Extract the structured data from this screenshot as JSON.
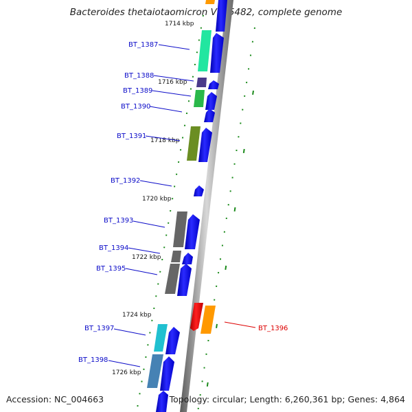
{
  "title": "Bacteroides thetaiotaomicron VPI-5482, complete genome",
  "accession_label": "Accession:",
  "accession": "NC_004663",
  "topology_label": "Topology: circular; Length: 6,260,361 bp; Genes: 4,864",
  "scale_labels": [
    "1714 kbp",
    "1716 kbp",
    "1718 kbp",
    "1720 kbp",
    "1722 kbp",
    "1724 kbp",
    "1726 kbp"
  ],
  "genes": [
    {
      "name": "BT_1387",
      "strand": "+",
      "cog_color": "#22e6a0"
    },
    {
      "name": "BT_1388",
      "strand": "+",
      "cog_color": "#4a3a8a"
    },
    {
      "name": "BT_1389",
      "strand": "+",
      "cog_color": "#2ab84a"
    },
    {
      "name": "BT_1390",
      "strand": "+",
      "cog_color": ""
    },
    {
      "name": "BT_1391",
      "strand": "+",
      "cog_color": "#6b8e23"
    },
    {
      "name": "BT_1392",
      "strand": "+",
      "cog_color": ""
    },
    {
      "name": "BT_1393",
      "strand": "+",
      "cog_color": "#666666"
    },
    {
      "name": "BT_1394",
      "strand": "+",
      "cog_color": "#666666"
    },
    {
      "name": "BT_1395",
      "strand": "+",
      "cog_color": "#666666"
    },
    {
      "name": "BT_1396",
      "strand": "-",
      "cog_color": "#ff9900"
    },
    {
      "name": "BT_1397",
      "strand": "+",
      "cog_color": "#20c0d0"
    },
    {
      "name": "BT_1398",
      "strand": "+",
      "cog_color": "#4682b4"
    }
  ],
  "colors": {
    "forward_strand": "#0000ee",
    "reverse_strand": "#ee0000",
    "backbone": "#8c8c8c",
    "tick": "#1a8a1a",
    "label_blue": "#0a0ac8",
    "label_red": "#dd0000"
  }
}
